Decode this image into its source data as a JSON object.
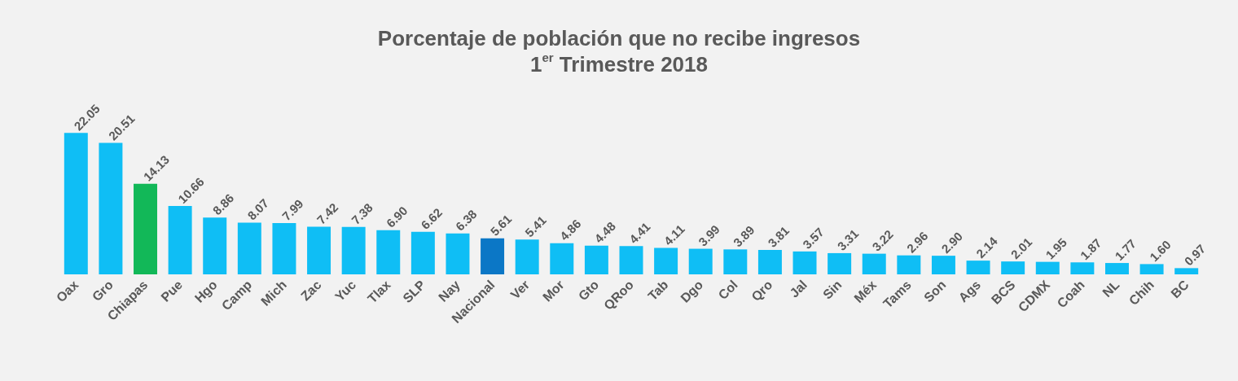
{
  "chart_data": {
    "type": "bar",
    "title": "Porcentaje de población que no recibe ingresos",
    "subtitle": "1$^{er}$ Trimestre 2018",
    "categories": [
      "Oax",
      "Gro",
      "Chiapas",
      "Pue",
      "Hgo",
      "Camp",
      "Mich",
      "Zac",
      "Yuc",
      "Tlax",
      "SLP",
      "Nay",
      "Nacional",
      "Ver",
      "Mor",
      "Gto",
      "QRoo",
      "Tab",
      "Dgo",
      "Col",
      "Qro",
      "Jal",
      "Sin",
      "Méx",
      "Tams",
      "Son",
      "Ags",
      "BCS",
      "CDMX",
      "Coah",
      "NL",
      "Chih",
      "BC"
    ],
    "values": [
      22.05,
      20.51,
      14.13,
      10.66,
      8.86,
      8.07,
      7.99,
      7.42,
      7.38,
      6.9,
      6.62,
      6.38,
      5.61,
      5.41,
      4.86,
      4.48,
      4.41,
      4.11,
      3.99,
      3.89,
      3.81,
      3.57,
      3.31,
      3.22,
      2.96,
      2.9,
      2.14,
      2.01,
      1.95,
      1.87,
      1.77,
      1.6,
      0.97
    ],
    "colors": [
      "#0fbef5",
      "#0fbef5",
      "#12b858",
      "#0fbef5",
      "#0fbef5",
      "#0fbef5",
      "#0fbef5",
      "#0fbef5",
      "#0fbef5",
      "#0fbef5",
      "#0fbef5",
      "#0fbef5",
      "#0b77c6",
      "#0fbef5",
      "#0fbef5",
      "#0fbef5",
      "#0fbef5",
      "#0fbef5",
      "#0fbef5",
      "#0fbef5",
      "#0fbef5",
      "#0fbef5",
      "#0fbef5",
      "#0fbef5",
      "#0fbef5",
      "#0fbef5",
      "#0fbef5",
      "#0fbef5",
      "#0fbef5",
      "#0fbef5",
      "#0fbef5",
      "#0fbef5",
      "#0fbef5"
    ],
    "value_labels": [
      "22.05",
      "20.51",
      "14.13",
      "10.66",
      "8.86",
      "8.07",
      "7.99",
      "7.42",
      "7.38",
      "6.90",
      "6.62",
      "6.38",
      "5.61",
      "5.41",
      "4.86",
      "4.48",
      "4.41",
      "4.11",
      "3.99",
      "3.89",
      "3.81",
      "3.57",
      "3.31",
      "3.22",
      "2.96",
      "2.90",
      "2.14",
      "2.01",
      "1.95",
      "1.87",
      "1.77",
      "1.60",
      "0.97"
    ]
  }
}
